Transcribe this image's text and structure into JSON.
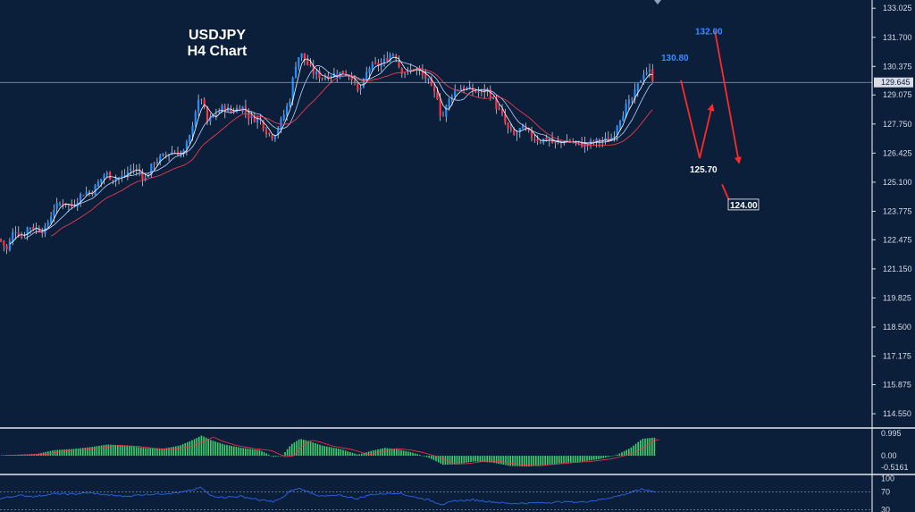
{
  "chart_data": {
    "type": "candlestick",
    "symbol": "USDJPY",
    "timeframe": "H4 Chart",
    "ylim": [
      113.9,
      133.4
    ],
    "yticks": [
      "133.025",
      "131.700",
      "130.375",
      "129.075",
      "127.750",
      "126.425",
      "125.100",
      "123.775",
      "122.475",
      "121.150",
      "119.825",
      "118.500",
      "117.175",
      "115.875",
      "114.550"
    ],
    "current_price": "129.645",
    "close_path": [
      [
        0,
        122.5
      ],
      [
        8,
        122.0
      ],
      [
        16,
        123.0
      ],
      [
        24,
        122.6
      ],
      [
        32,
        123.1
      ],
      [
        40,
        123.0
      ],
      [
        50,
        122.9
      ],
      [
        60,
        123.9
      ],
      [
        70,
        124.2
      ],
      [
        80,
        124.0
      ],
      [
        92,
        124.6
      ],
      [
        104,
        124.7
      ],
      [
        112,
        125.2
      ],
      [
        118,
        125.5
      ],
      [
        126,
        125.3
      ],
      [
        136,
        125.3
      ],
      [
        146,
        125.7
      ],
      [
        156,
        125.6
      ],
      [
        162,
        125.2
      ],
      [
        172,
        126.0
      ],
      [
        180,
        126.2
      ],
      [
        192,
        126.5
      ],
      [
        205,
        126.4
      ],
      [
        212,
        127.1
      ],
      [
        218,
        128.3
      ],
      [
        225,
        129.0
      ],
      [
        232,
        127.8
      ],
      [
        240,
        128.2
      ],
      [
        250,
        128.5
      ],
      [
        260,
        128.3
      ],
      [
        270,
        128.6
      ],
      [
        280,
        128.0
      ],
      [
        290,
        128.0
      ],
      [
        300,
        127.3
      ],
      [
        306,
        127.2
      ],
      [
        314,
        127.8
      ],
      [
        320,
        128.4
      ],
      [
        325,
        129.0
      ],
      [
        330,
        130.4
      ],
      [
        336,
        131.0
      ],
      [
        342,
        130.6
      ],
      [
        350,
        130.1
      ],
      [
        360,
        129.9
      ],
      [
        372,
        130.0
      ],
      [
        385,
        130.1
      ],
      [
        394,
        129.9
      ],
      [
        400,
        129.2
      ],
      [
        406,
        129.5
      ],
      [
        412,
        130.3
      ],
      [
        420,
        130.4
      ],
      [
        428,
        130.5
      ],
      [
        436,
        130.9
      ],
      [
        442,
        131.0
      ],
      [
        448,
        130.2
      ],
      [
        456,
        130.1
      ],
      [
        464,
        130.3
      ],
      [
        472,
        130.0
      ],
      [
        478,
        129.8
      ],
      [
        484,
        129.2
      ],
      [
        490,
        129.0
      ],
      [
        494,
        127.9
      ],
      [
        500,
        128.6
      ],
      [
        508,
        129.3
      ],
      [
        516,
        129.4
      ],
      [
        526,
        129.3
      ],
      [
        536,
        129.2
      ],
      [
        546,
        129.3
      ],
      [
        556,
        128.5
      ],
      [
        562,
        128.1
      ],
      [
        568,
        127.5
      ],
      [
        576,
        127.2
      ],
      [
        584,
        127.6
      ],
      [
        594,
        127.2
      ],
      [
        604,
        127.0
      ],
      [
        614,
        127.1
      ],
      [
        620,
        126.8
      ],
      [
        626,
        126.9
      ],
      [
        634,
        127.0
      ],
      [
        644,
        126.9
      ],
      [
        654,
        126.8
      ],
      [
        664,
        126.9
      ],
      [
        672,
        127.0
      ],
      [
        680,
        127.0
      ],
      [
        686,
        127.2
      ],
      [
        692,
        127.9
      ],
      [
        700,
        128.5
      ],
      [
        708,
        128.9
      ],
      [
        714,
        129.5
      ],
      [
        720,
        130.1
      ],
      [
        726,
        130.2
      ],
      [
        732,
        129.7
      ]
    ],
    "annotations": [
      {
        "text": "130.80",
        "price": 130.8,
        "style": "blue"
      },
      {
        "text": "132.00",
        "price": 132.0,
        "style": "blue"
      },
      {
        "text": "125.70",
        "price": 125.7,
        "style": "white"
      },
      {
        "text": "124.00",
        "price": 124.0,
        "style": "boxed"
      }
    ],
    "projection_paths": [
      [
        [
          762,
          129.75
        ],
        [
          783,
          126.2
        ],
        [
          797,
          128.6
        ]
      ],
      [
        [
          800,
          132.0
        ],
        [
          827,
          126.0
        ]
      ],
      [
        [
          808,
          125.0
        ],
        [
          820,
          123.9
        ]
      ]
    ],
    "macd": {
      "ylim": [
        -0.75,
        1.15
      ],
      "yticks": [
        "0.995",
        "0.00",
        "-0.5161"
      ],
      "hist_path": [
        [
          0,
          0.02
        ],
        [
          20,
          0.05
        ],
        [
          40,
          0.08
        ],
        [
          60,
          0.25
        ],
        [
          80,
          0.3
        ],
        [
          100,
          0.38
        ],
        [
          120,
          0.5
        ],
        [
          140,
          0.45
        ],
        [
          160,
          0.35
        ],
        [
          180,
          0.3
        ],
        [
          200,
          0.45
        ],
        [
          215,
          0.7
        ],
        [
          225,
          0.9
        ],
        [
          235,
          0.7
        ],
        [
          250,
          0.5
        ],
        [
          270,
          0.35
        ],
        [
          290,
          0.25
        ],
        [
          305,
          -0.05
        ],
        [
          315,
          0.0
        ],
        [
          325,
          0.5
        ],
        [
          335,
          0.75
        ],
        [
          345,
          0.65
        ],
        [
          360,
          0.45
        ],
        [
          380,
          0.3
        ],
        [
          400,
          0.05
        ],
        [
          415,
          0.22
        ],
        [
          430,
          0.35
        ],
        [
          445,
          0.28
        ],
        [
          460,
          0.15
        ],
        [
          480,
          -0.1
        ],
        [
          495,
          -0.4
        ],
        [
          510,
          -0.38
        ],
        [
          530,
          -0.25
        ],
        [
          550,
          -0.3
        ],
        [
          570,
          -0.45
        ],
        [
          590,
          -0.48
        ],
        [
          610,
          -0.4
        ],
        [
          630,
          -0.32
        ],
        [
          650,
          -0.26
        ],
        [
          670,
          -0.15
        ],
        [
          690,
          0.05
        ],
        [
          705,
          0.35
        ],
        [
          718,
          0.75
        ],
        [
          730,
          0.8
        ]
      ],
      "zero_level": 0.0
    },
    "rsi": {
      "ylim": [
        25,
        105
      ],
      "yticks": [
        "100",
        "70",
        "30"
      ],
      "levels": [
        70,
        30
      ],
      "line_path": [
        [
          0,
          55
        ],
        [
          20,
          62
        ],
        [
          40,
          60
        ],
        [
          60,
          66
        ],
        [
          80,
          65
        ],
        [
          100,
          68
        ],
        [
          120,
          63
        ],
        [
          140,
          60
        ],
        [
          160,
          64
        ],
        [
          180,
          66
        ],
        [
          200,
          68
        ],
        [
          215,
          74
        ],
        [
          225,
          80
        ],
        [
          235,
          62
        ],
        [
          250,
          58
        ],
        [
          270,
          60
        ],
        [
          290,
          52
        ],
        [
          305,
          48
        ],
        [
          315,
          55
        ],
        [
          325,
          72
        ],
        [
          335,
          78
        ],
        [
          345,
          70
        ],
        [
          360,
          60
        ],
        [
          380,
          62
        ],
        [
          400,
          55
        ],
        [
          415,
          64
        ],
        [
          430,
          66
        ],
        [
          445,
          68
        ],
        [
          460,
          60
        ],
        [
          480,
          52
        ],
        [
          495,
          42
        ],
        [
          510,
          50
        ],
        [
          530,
          52
        ],
        [
          550,
          48
        ],
        [
          570,
          44
        ],
        [
          590,
          45
        ],
        [
          610,
          46
        ],
        [
          630,
          48
        ],
        [
          650,
          47
        ],
        [
          670,
          52
        ],
        [
          690,
          60
        ],
        [
          705,
          68
        ],
        [
          718,
          76
        ],
        [
          730,
          72
        ]
      ]
    }
  }
}
